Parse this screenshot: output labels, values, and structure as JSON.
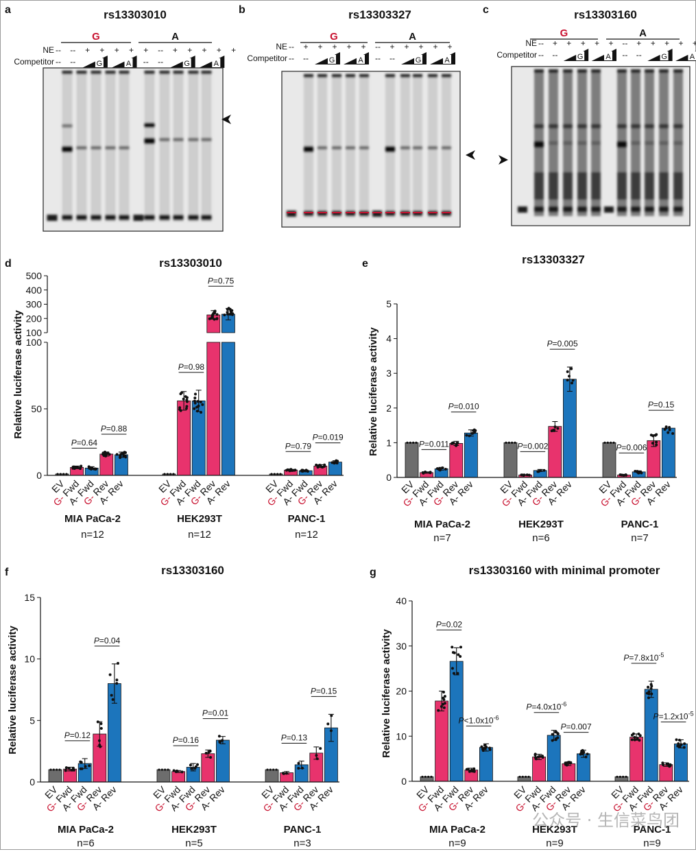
{
  "gels": [
    {
      "letter": "a",
      "title": "rs13303010",
      "groups": [
        "G",
        "A"
      ],
      "ne": [
        "--",
        "--",
        "+",
        "+",
        "+",
        "+",
        "+",
        "--",
        "+",
        "+",
        "+",
        "+",
        "+"
      ],
      "comp_left": [
        "--",
        "--"
      ],
      "comp_right": [
        "--",
        "--"
      ],
      "comp_G": "G",
      "comp_A": "A",
      "ne_label": "NE",
      "comp_label": "Competitor"
    },
    {
      "letter": "b",
      "title": "rs13303327",
      "groups": [
        "G",
        "A"
      ],
      "ne": [
        "--",
        "+",
        "+",
        "+",
        "+",
        "+",
        "--",
        "+",
        "+",
        "+",
        "+",
        "+"
      ],
      "comp_left": [
        "--",
        "--"
      ],
      "comp_right": [
        "--",
        "--"
      ],
      "comp_G": "G",
      "comp_A": "A",
      "ne_label": "NE",
      "comp_label": "Competitor"
    },
    {
      "letter": "c",
      "title": "rs13303160",
      "groups": [
        "G",
        "A"
      ],
      "ne": [
        "--",
        "+",
        "+",
        "+",
        "+",
        "+",
        "--",
        "+",
        "+",
        "+",
        "+",
        "+"
      ],
      "comp_left": [
        "--",
        "--"
      ],
      "comp_right": [
        "--",
        "--"
      ],
      "comp_G": "G",
      "comp_A": "A",
      "ne_label": "NE",
      "comp_label": "Competitor"
    }
  ],
  "watermark": "公众号 · 生信菜鸟团",
  "chart_data": [
    {
      "panel": "d",
      "type": "bar",
      "title": "rs13303010",
      "ylabel": "Relative luciferase activity",
      "ylim_lower": [
        0,
        100
      ],
      "ylim_upper": [
        100,
        500
      ],
      "yticks_lower": [
        "0",
        "50",
        "100"
      ],
      "yticks_upper": [
        "100",
        "200",
        "300",
        "400",
        "500"
      ],
      "categories": [
        "EV",
        "G- Fwd",
        "A- Fwd",
        "G- Rev",
        "A- Rev"
      ],
      "groups": [
        {
          "name": "MIA PaCa-2",
          "n": "n=12",
          "values": [
            1,
            6,
            5.5,
            16,
            15.5
          ],
          "errors": [
            0,
            1,
            1,
            1.5,
            2
          ],
          "pvals": [
            "P=0.64",
            "P=0.88"
          ]
        },
        {
          "name": "HEK293T",
          "n": "n=12",
          "values": [
            1,
            56,
            56,
            225,
            230
          ],
          "errors": [
            0,
            7,
            8,
            30,
            40
          ],
          "pvals": [
            "P=0.98",
            "P=0.75"
          ]
        },
        {
          "name": "PANC-1",
          "n": "n=12",
          "values": [
            1,
            4,
            3.5,
            7,
            10
          ],
          "errors": [
            0,
            0.5,
            0.5,
            1,
            1
          ],
          "pvals": [
            "P=0.79",
            "P=0.019"
          ]
        }
      ]
    },
    {
      "panel": "e",
      "type": "bar",
      "title": "rs13303327",
      "ylabel": "Relative luciferase activity",
      "ylim": [
        0,
        5
      ],
      "yticks": [
        "0",
        "1",
        "2",
        "3",
        "4",
        "5"
      ],
      "categories": [
        "EV",
        "G- Fwd",
        "A- Fwd",
        "G- Rev",
        "A- Rev"
      ],
      "groups": [
        {
          "name": "MIA PaCa-2",
          "n": "n=7",
          "values": [
            1,
            0.14,
            0.25,
            0.98,
            1.28
          ],
          "errors": [
            0,
            0.02,
            0.04,
            0.06,
            0.09
          ],
          "pvals": [
            "P=0.011",
            "P=0.010"
          ]
        },
        {
          "name": "HEK293T",
          "n": "n=6",
          "values": [
            1,
            0.07,
            0.2,
            1.47,
            2.83
          ],
          "errors": [
            0,
            0.01,
            0.03,
            0.14,
            0.35
          ],
          "pvals": [
            "P=0.002",
            "P=0.005"
          ]
        },
        {
          "name": "PANC-1",
          "n": "n=7",
          "values": [
            1,
            0.07,
            0.16,
            1.06,
            1.42
          ],
          "errors": [
            0,
            0.01,
            0.03,
            0.17,
            0
          ],
          "pvals": [
            "P=0.006",
            "P=0.15"
          ]
        }
      ]
    },
    {
      "panel": "f",
      "type": "bar",
      "title": "rs13303160",
      "ylabel": "Relative luciferase activity",
      "ylim": [
        0,
        15
      ],
      "yticks": [
        "0",
        "5",
        "10",
        "15"
      ],
      "categories": [
        "EV",
        "G- Fwd",
        "A- Fwd",
        "G- Rev",
        "A- Rev"
      ],
      "groups": [
        {
          "name": "MIA PaCa-2",
          "n": "n=6",
          "values": [
            1,
            1.05,
            1.5,
            3.9,
            8.0
          ],
          "errors": [
            0,
            0.15,
            0.4,
            1.0,
            1.6
          ],
          "pvals": [
            "P=0.12",
            "P=0.04"
          ]
        },
        {
          "name": "HEK293T",
          "n": "n=5",
          "values": [
            1,
            0.85,
            1.2,
            2.3,
            3.4
          ],
          "errors": [
            0,
            0.08,
            0.3,
            0.3,
            0.3
          ],
          "pvals": [
            "P=0.16",
            "P=0.01"
          ]
        },
        {
          "name": "PANC-1",
          "n": "n=3",
          "values": [
            1,
            0.75,
            1.4,
            2.35,
            4.4
          ],
          "errors": [
            0,
            0.1,
            0.3,
            0.5,
            1.1
          ],
          "pvals": [
            "P=0.13",
            "P=0.15"
          ]
        }
      ]
    },
    {
      "panel": "g",
      "type": "bar",
      "title": "rs13303160 with minimal promoter",
      "ylabel": "Relative luciferase activity",
      "ylim": [
        0,
        40
      ],
      "yticks": [
        "0",
        "10",
        "20",
        "30",
        "40"
      ],
      "categories": [
        "EV",
        "G- Fwd",
        "A- Fwd",
        "G- Rev",
        "A- Rev"
      ],
      "groups": [
        {
          "name": "MIA PaCa-2",
          "n": "n=9",
          "values": [
            1,
            17.8,
            26.6,
            2.5,
            7.5
          ],
          "errors": [
            0,
            2.2,
            3.0,
            0.4,
            0.8
          ],
          "pvals": [
            "P=0.02",
            "P<1.0x10-6"
          ]
        },
        {
          "name": "HEK293T",
          "n": "n=9",
          "values": [
            1,
            5.4,
            10.2,
            3.9,
            6.1
          ],
          "errors": [
            0,
            0.6,
            1.1,
            0.4,
            0.8
          ],
          "pvals": [
            "P=4.0x10-6",
            "P=0.007"
          ]
        },
        {
          "name": "PANC-1",
          "n": "n=9",
          "values": [
            1,
            9.8,
            20.4,
            3.7,
            8.3
          ],
          "errors": [
            0,
            0.7,
            1.8,
            0.4,
            0.9
          ],
          "pvals": [
            "P=7.8x10-5",
            "P=1.2x10-5"
          ]
        }
      ]
    }
  ]
}
